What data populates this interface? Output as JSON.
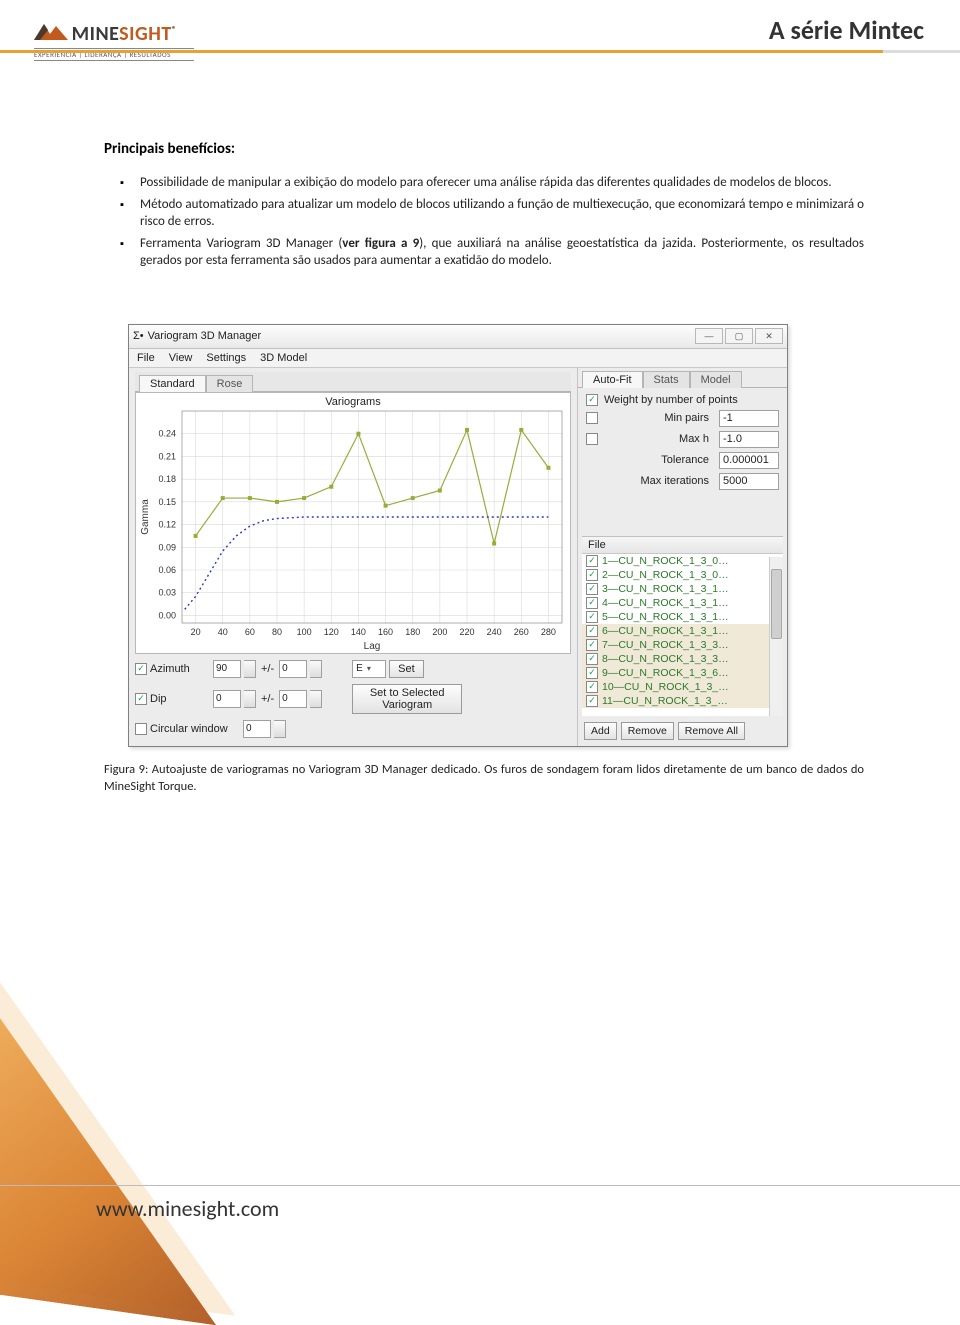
{
  "header": {
    "series_title": "A série Mintec",
    "logo_brand_a": "MINE",
    "logo_brand_b": "SIGHT",
    "logo_tagline": "EXPERIÊNCIA | LIDERANÇA | RESULTADOS"
  },
  "footer": {
    "url": "www.minesight.com"
  },
  "content": {
    "benefits_heading": "Principais benefícios:",
    "bullets": [
      "Possibilidade de manipular a exibição do modelo para oferecer uma análise rápida das diferentes qualidades de modelos de blocos.",
      "Método automatizado para atualizar um modelo de blocos utilizando a função de multiexecução, que economizará tempo e minimizará o risco de erros.",
      "Ferramenta Variogram 3D Manager (ver figura a 9), que auxiliará na análise geoestatística da jazida. Posteriormente, os resultados gerados por esta ferramenta são usados para aumentar a exatidão do modelo."
    ],
    "fig_caption": "Figura 9: Autoajuste de variogramas no Variogram 3D Manager dedicado. Os furos de sondagem foram lidos diretamente de um banco de dados do MineSight Torque."
  },
  "app": {
    "title": "Variogram 3D Manager",
    "menus": [
      "File",
      "View",
      "Settings",
      "3D Model"
    ],
    "tabs_left": [
      "Standard",
      "Rose"
    ],
    "tabs_right": [
      "Auto-Fit",
      "Stats",
      "Model"
    ],
    "chart": {
      "title": "Variograms",
      "ylabel": "Gamma",
      "xlabel": "Lag",
      "xticks": [
        20,
        40,
        60,
        80,
        100,
        120,
        140,
        160,
        180,
        200,
        220,
        240,
        260,
        280
      ],
      "yticks": [
        0.0,
        0.03,
        0.06,
        0.09,
        0.12,
        0.15,
        0.18,
        0.21,
        0.24
      ],
      "xlim": [
        10,
        290
      ],
      "ylim": [
        -0.01,
        0.27
      ],
      "grid_color": "#d9d9d9",
      "background": "#ffffff",
      "series": [
        {
          "name": "line-olive",
          "color": "#9caa3a",
          "width": 1.2,
          "marker": "square",
          "marker_size": 4,
          "points": [
            [
              20,
              0.105
            ],
            [
              40,
              0.155
            ],
            [
              60,
              0.155
            ],
            [
              80,
              0.15
            ],
            [
              100,
              0.155
            ],
            [
              120,
              0.17
            ],
            [
              140,
              0.24
            ],
            [
              160,
              0.145
            ],
            [
              180,
              0.155
            ],
            [
              200,
              0.165
            ],
            [
              220,
              0.245
            ],
            [
              240,
              0.095
            ],
            [
              260,
              0.245
            ],
            [
              280,
              0.195
            ]
          ]
        },
        {
          "name": "line-blue-dotted",
          "color": "#2a3ac8",
          "width": 1.4,
          "dash": "2,3",
          "points": [
            [
              12,
              0.008
            ],
            [
              20,
              0.025
            ],
            [
              30,
              0.055
            ],
            [
              40,
              0.085
            ],
            [
              50,
              0.105
            ],
            [
              60,
              0.118
            ],
            [
              70,
              0.125
            ],
            [
              80,
              0.128
            ],
            [
              90,
              0.129
            ],
            [
              100,
              0.13
            ],
            [
              120,
              0.13
            ],
            [
              140,
              0.13
            ],
            [
              160,
              0.13
            ],
            [
              180,
              0.13
            ],
            [
              200,
              0.13
            ],
            [
              220,
              0.13
            ],
            [
              240,
              0.13
            ],
            [
              260,
              0.13
            ],
            [
              280,
              0.13
            ]
          ]
        }
      ]
    },
    "controls": {
      "azimuth": {
        "label": "Azimuth",
        "checked": true,
        "val": "90",
        "pm": "+/-",
        "pm_val": "0"
      },
      "dip": {
        "label": "Dip",
        "checked": true,
        "val": "0",
        "pm": "+/-",
        "pm_val": "0"
      },
      "circular": {
        "label": "Circular window",
        "checked": false,
        "val": "0"
      },
      "e_select": "E",
      "btn_set": "Set",
      "btn_set_selected": "Set to Selected Variogram"
    },
    "autofit": {
      "weight": {
        "label": "Weight by number of points",
        "checked": true
      },
      "minpairs": {
        "label": "Min pairs",
        "checked": false,
        "val": "-1"
      },
      "maxh": {
        "label": "Max h",
        "checked": false,
        "val": "-1.0"
      },
      "tolerance": {
        "label": "Tolerance",
        "val": "0.000001"
      },
      "maxiter": {
        "label": "Max iterations",
        "val": "5000"
      }
    },
    "files": {
      "header": "File",
      "rows": [
        "1—CU_N_ROCK_1_3_0…",
        "2—CU_N_ROCK_1_3_0…",
        "3—CU_N_ROCK_1_3_1…",
        "4—CU_N_ROCK_1_3_1…",
        "5—CU_N_ROCK_1_3_1…",
        "6—CU_N_ROCK_1_3_1…",
        "7—CU_N_ROCK_1_3_3…",
        "8—CU_N_ROCK_1_3_3…",
        "9—CU_N_ROCK_1_3_6…",
        "10—CU_N_ROCK_1_3_…",
        "11—CU_N_ROCK_1_3_…"
      ]
    },
    "bottom_buttons": {
      "add": "Add",
      "remove": "Remove",
      "remove_all": "Remove All"
    }
  },
  "colors": {
    "accent_orange": "#d77a24",
    "header_rule": "#e8a03a"
  }
}
